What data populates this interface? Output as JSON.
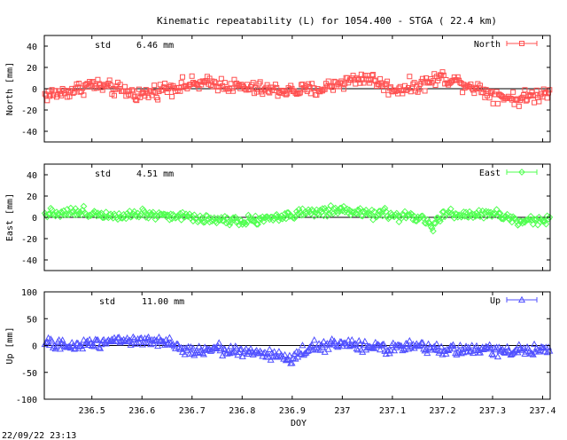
{
  "title": "Kinematic repeatability (L) for 1054.400 - STGA  ( 22.4 km)",
  "footer_timestamp": "22/09/22 23:13",
  "chart_data": [
    {
      "type": "scatter",
      "ylabel": "North [mm]",
      "ylim": [
        -50,
        50
      ],
      "yticks": [
        40,
        20,
        0,
        -20,
        -40
      ],
      "xlim": [
        236.405,
        237.415
      ],
      "std_label": "std",
      "std_value": "6.46 mm",
      "series": [
        {
          "name": "North",
          "color": "#ff5050",
          "marker": "square",
          "trend": [
            [
              236.405,
              -6
            ],
            [
              236.45,
              -3
            ],
            [
              236.5,
              4
            ],
            [
              236.55,
              -1
            ],
            [
              236.6,
              -6
            ],
            [
              236.65,
              1
            ],
            [
              236.7,
              4
            ],
            [
              236.75,
              5
            ],
            [
              236.8,
              1
            ],
            [
              236.85,
              -1
            ],
            [
              236.9,
              -2
            ],
            [
              236.95,
              -1
            ],
            [
              237.0,
              6
            ],
            [
              237.05,
              11
            ],
            [
              237.1,
              -1
            ],
            [
              237.15,
              3
            ],
            [
              237.2,
              11
            ],
            [
              237.25,
              4
            ],
            [
              237.3,
              -5
            ],
            [
              237.35,
              -10
            ],
            [
              237.415,
              -3
            ]
          ],
          "noise": 5,
          "points": 430
        }
      ]
    },
    {
      "type": "scatter",
      "ylabel": "East [mm]",
      "ylim": [
        -50,
        50
      ],
      "yticks": [
        40,
        20,
        0,
        -20,
        -40
      ],
      "xlim": [
        236.405,
        237.415
      ],
      "std_label": "std",
      "std_value": "4.51 mm",
      "series": [
        {
          "name": "East",
          "color": "#50ff50",
          "marker": "diamond",
          "trend": [
            [
              236.405,
              4
            ],
            [
              236.45,
              5
            ],
            [
              236.5,
              4
            ],
            [
              236.55,
              2
            ],
            [
              236.6,
              4
            ],
            [
              236.65,
              2
            ],
            [
              236.7,
              0
            ],
            [
              236.75,
              -2
            ],
            [
              236.8,
              -3
            ],
            [
              236.85,
              -1
            ],
            [
              236.9,
              2
            ],
            [
              236.95,
              5
            ],
            [
              237.0,
              5
            ],
            [
              237.05,
              4
            ],
            [
              237.1,
              2
            ],
            [
              237.15,
              0
            ],
            [
              237.17,
              -5
            ],
            [
              237.18,
              -12
            ],
            [
              237.19,
              -2
            ],
            [
              237.2,
              3
            ],
            [
              237.25,
              2
            ],
            [
              237.3,
              4
            ],
            [
              237.35,
              -4
            ],
            [
              237.415,
              -1
            ]
          ],
          "noise": 3.5,
          "points": 430
        }
      ]
    },
    {
      "type": "scatter",
      "ylabel": "Up [mm]",
      "ylim": [
        -100,
        100
      ],
      "yticks": [
        100,
        50,
        0,
        -50,
        -100
      ],
      "xlim": [
        236.405,
        237.415
      ],
      "std_label": "std",
      "std_value": "11.00 mm",
      "series": [
        {
          "name": "Up",
          "color": "#5050ff",
          "marker": "triangle",
          "trend": [
            [
              236.405,
              5
            ],
            [
              236.45,
              -2
            ],
            [
              236.5,
              5
            ],
            [
              236.55,
              12
            ],
            [
              236.6,
              8
            ],
            [
              236.65,
              5
            ],
            [
              236.67,
              -5
            ],
            [
              236.7,
              -8
            ],
            [
              236.75,
              -6
            ],
            [
              236.8,
              -12
            ],
            [
              236.85,
              -15
            ],
            [
              236.9,
              -25
            ],
            [
              236.93,
              -5
            ],
            [
              236.95,
              0
            ],
            [
              237.0,
              2
            ],
            [
              237.05,
              -2
            ],
            [
              237.1,
              -5
            ],
            [
              237.15,
              -3
            ],
            [
              237.2,
              -8
            ],
            [
              237.25,
              -7
            ],
            [
              237.3,
              -9
            ],
            [
              237.35,
              -8
            ],
            [
              237.415,
              -12
            ]
          ],
          "noise": 7.5,
          "points": 430
        }
      ]
    }
  ],
  "x_axis": {
    "label": "DOY",
    "ticks": [
      236.5,
      236.6,
      236.7,
      236.8,
      236.9,
      237,
      237.1,
      237.2,
      237.3,
      237.4
    ],
    "tick_labels": [
      "236.5",
      "236.6",
      "236.7",
      "236.8",
      "236.9",
      "237",
      "237.1",
      "237.2",
      "237.3",
      "237.4"
    ]
  }
}
